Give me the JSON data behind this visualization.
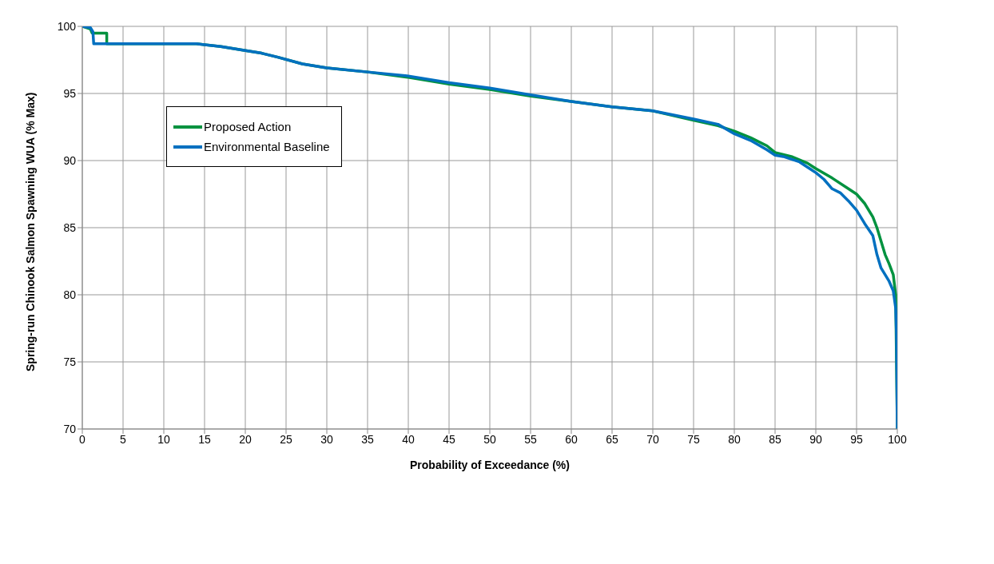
{
  "chart_data": {
    "type": "line",
    "xlabel": "Probability of Exceedance (%)",
    "ylabel": "Spring-run Chinook Salmon Spawning WUA (% Max)",
    "xlim": [
      0,
      100
    ],
    "xticks": [
      0,
      5,
      10,
      15,
      20,
      25,
      30,
      35,
      40,
      45,
      50,
      55,
      60,
      65,
      70,
      75,
      80,
      85,
      90,
      95,
      100
    ],
    "ylim": [
      70,
      100
    ],
    "yticks": [
      70,
      75,
      80,
      85,
      90,
      95,
      100
    ],
    "grid": true,
    "legend": "top left",
    "marker": "none",
    "line_style": "solid",
    "series": [
      {
        "name": "Proposed Action",
        "color": "#00923f",
        "x": [
          0,
          1,
          1.2,
          3,
          3,
          14,
          17,
          20,
          22,
          24,
          27,
          30,
          35,
          40,
          45,
          50,
          55,
          60,
          65,
          70,
          75,
          78,
          80,
          82,
          84,
          85,
          87,
          89,
          90,
          92,
          94,
          95,
          96,
          97,
          97.5,
          98,
          98.5,
          99,
          99.5,
          99.8,
          100
        ],
        "values": [
          100,
          99.8,
          99.5,
          99.5,
          98.7,
          98.7,
          98.5,
          98.2,
          98.0,
          97.7,
          97.2,
          96.9,
          96.6,
          96.2,
          95.7,
          95.3,
          94.8,
          94.4,
          94.0,
          93.7,
          93.0,
          92.6,
          92.2,
          91.7,
          91.1,
          90.6,
          90.3,
          89.8,
          89.4,
          88.7,
          87.9,
          87.5,
          86.8,
          85.8,
          85.0,
          84.0,
          83.0,
          82.3,
          81.5,
          80.0,
          70
        ]
      },
      {
        "name": "Environmental Baseline",
        "color": "#0070c0",
        "x": [
          0,
          1,
          1.3,
          1.4,
          14,
          17,
          20,
          22,
          24,
          27,
          30,
          35,
          40,
          45,
          50,
          55,
          60,
          65,
          70,
          75,
          78,
          80,
          82,
          84,
          85,
          86,
          88,
          90,
          91,
          92,
          93,
          94,
          95,
          96,
          97,
          97.5,
          98,
          99,
          99.5,
          99.8,
          99.9,
          100
        ],
        "values": [
          100,
          99.9,
          99.6,
          98.7,
          98.7,
          98.5,
          98.2,
          98.0,
          97.7,
          97.2,
          96.9,
          96.6,
          96.3,
          95.8,
          95.4,
          94.9,
          94.4,
          94.0,
          93.7,
          93.1,
          92.7,
          92.0,
          91.5,
          90.8,
          90.4,
          90.3,
          89.9,
          89.1,
          88.6,
          87.9,
          87.6,
          87.0,
          86.3,
          85.3,
          84.4,
          83,
          82,
          81,
          80.3,
          79,
          77,
          70
        ]
      }
    ]
  }
}
